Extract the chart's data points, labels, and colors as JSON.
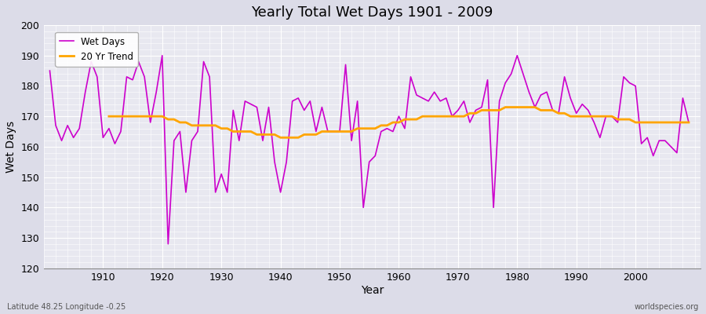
{
  "title": "Yearly Total Wet Days 1901 - 2009",
  "xlabel": "Year",
  "ylabel": "Wet Days",
  "subtitle": "Latitude 48.25 Longitude -0.25",
  "watermark": "worldspecies.org",
  "ylim": [
    120,
    200
  ],
  "xlim": [
    1901,
    2009
  ],
  "yticks": [
    120,
    130,
    140,
    150,
    160,
    170,
    180,
    190,
    200
  ],
  "xticks": [
    1910,
    1920,
    1930,
    1940,
    1950,
    1960,
    1970,
    1980,
    1990,
    2000
  ],
  "wet_days_color": "#CC00CC",
  "trend_color": "#FFA500",
  "bg_color": "#DCDCE8",
  "plot_bg_color": "#E8E8F0",
  "grid_color": "#FFFFFF",
  "legend_wet": "Wet Days",
  "legend_trend": "20 Yr Trend",
  "years": [
    1901,
    1902,
    1903,
    1904,
    1905,
    1906,
    1907,
    1908,
    1909,
    1910,
    1911,
    1912,
    1913,
    1914,
    1915,
    1916,
    1917,
    1918,
    1919,
    1920,
    1921,
    1922,
    1923,
    1924,
    1925,
    1926,
    1927,
    1928,
    1929,
    1930,
    1931,
    1932,
    1933,
    1934,
    1935,
    1936,
    1937,
    1938,
    1939,
    1940,
    1941,
    1942,
    1943,
    1944,
    1945,
    1946,
    1947,
    1948,
    1949,
    1950,
    1951,
    1952,
    1953,
    1954,
    1955,
    1956,
    1957,
    1958,
    1959,
    1960,
    1961,
    1962,
    1963,
    1964,
    1965,
    1966,
    1967,
    1968,
    1969,
    1970,
    1971,
    1972,
    1973,
    1974,
    1975,
    1976,
    1977,
    1978,
    1979,
    1980,
    1981,
    1982,
    1983,
    1984,
    1985,
    1986,
    1987,
    1988,
    1989,
    1990,
    1991,
    1992,
    1993,
    1994,
    1995,
    1996,
    1997,
    1998,
    1999,
    2000,
    2001,
    2002,
    2003,
    2004,
    2005,
    2006,
    2007,
    2008,
    2009
  ],
  "wet_days": [
    185,
    167,
    162,
    167,
    163,
    166,
    178,
    188,
    183,
    163,
    166,
    161,
    165,
    183,
    182,
    188,
    183,
    168,
    178,
    190,
    128,
    162,
    165,
    145,
    162,
    165,
    188,
    183,
    145,
    151,
    145,
    172,
    162,
    175,
    174,
    173,
    162,
    173,
    155,
    145,
    155,
    175,
    176,
    172,
    175,
    165,
    173,
    165,
    165,
    165,
    187,
    162,
    175,
    140,
    155,
    157,
    165,
    166,
    165,
    170,
    166,
    183,
    177,
    176,
    175,
    178,
    175,
    176,
    170,
    172,
    175,
    168,
    172,
    173,
    182,
    140,
    175,
    181,
    184,
    190,
    184,
    178,
    173,
    177,
    178,
    172,
    171,
    183,
    176,
    171,
    174,
    172,
    168,
    163,
    170,
    170,
    168,
    183,
    181,
    180,
    161,
    163,
    157,
    162,
    162,
    160,
    158,
    176,
    168
  ],
  "trend": [
    null,
    null,
    null,
    null,
    null,
    null,
    null,
    null,
    null,
    null,
    170,
    170,
    170,
    170,
    170,
    170,
    170,
    170,
    170,
    170,
    169,
    169,
    168,
    168,
    167,
    167,
    167,
    167,
    167,
    166,
    166,
    165,
    165,
    165,
    165,
    164,
    164,
    164,
    164,
    163,
    163,
    163,
    163,
    164,
    164,
    164,
    165,
    165,
    165,
    165,
    165,
    165,
    166,
    166,
    166,
    166,
    167,
    167,
    168,
    168,
    169,
    169,
    169,
    170,
    170,
    170,
    170,
    170,
    170,
    170,
    170,
    171,
    171,
    172,
    172,
    172,
    172,
    173,
    173,
    173,
    173,
    173,
    173,
    172,
    172,
    172,
    171,
    171,
    170,
    170,
    170,
    170,
    170,
    170,
    170,
    170,
    169,
    169,
    169,
    168,
    168,
    168,
    168,
    168,
    168,
    168,
    168,
    168,
    168
  ]
}
